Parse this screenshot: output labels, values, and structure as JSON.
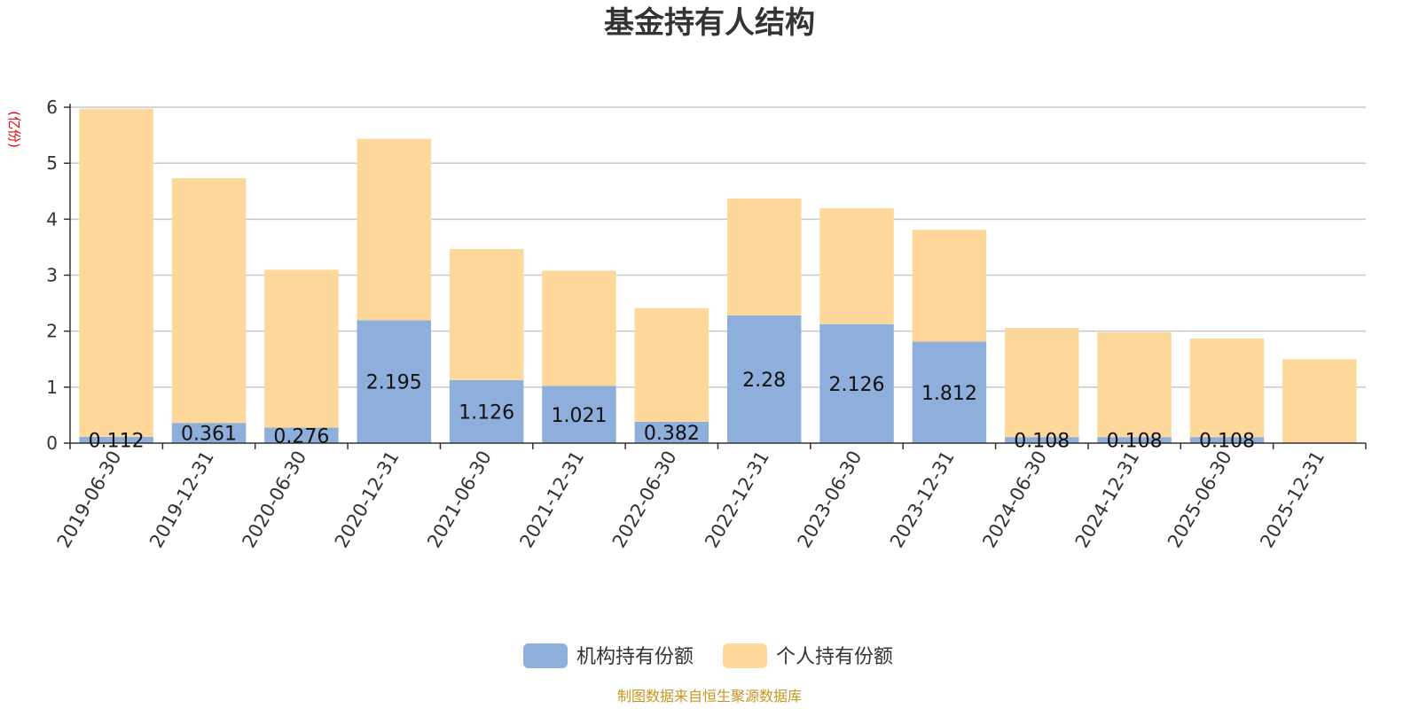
{
  "chart_data": {
    "type": "bar",
    "stacked": true,
    "title": "基金持有人结构",
    "unit_label": "(亿份)",
    "ylim": [
      0,
      6
    ],
    "yticks": [
      0,
      1,
      2,
      3,
      4,
      5,
      6
    ],
    "grid": true,
    "legend_position": "bottom",
    "categories": [
      "2019-06-30",
      "2019-12-31",
      "2020-06-30",
      "2020-12-31",
      "2021-06-30",
      "2021-12-31",
      "2022-06-30",
      "2022-12-31",
      "2023-06-30",
      "2023-12-31",
      "2024-06-30",
      "2024-12-31",
      "2025-06-30",
      "2025-12-31"
    ],
    "series": [
      {
        "name": "机构持有份额",
        "color": "#8eaedb",
        "values": [
          0.112,
          0.361,
          0.276,
          2.195,
          1.126,
          1.021,
          0.382,
          2.28,
          2.126,
          1.812,
          0.108,
          0.108,
          0.108,
          0
        ],
        "labels": [
          "0.112",
          "0.361",
          "0.276",
          "2.195",
          "1.126",
          "1.021",
          "0.382",
          "2.28",
          "2.126",
          "1.812",
          "0.108",
          "0.108",
          "0.108",
          ""
        ]
      },
      {
        "name": "个人持有份额",
        "color": "#fed89b",
        "values": [
          5.86,
          4.37,
          2.82,
          3.24,
          2.34,
          2.06,
          2.03,
          2.09,
          2.07,
          2.0,
          1.95,
          1.87,
          1.76,
          1.5
        ]
      }
    ],
    "source": "制图数据来自恒生聚源数据库"
  }
}
